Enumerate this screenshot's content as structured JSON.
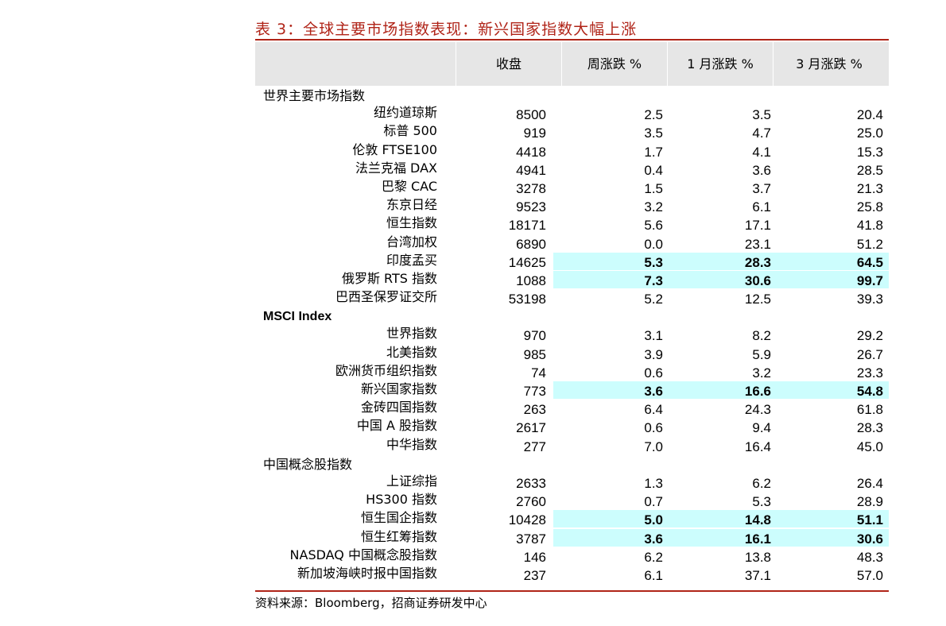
{
  "title": "表 3：全球主要市场指数表现：新兴国家指数大幅上涨",
  "columns": [
    "",
    "收盘",
    "周涨跌 %",
    "1 月涨跌 %",
    "3 月涨跌 %"
  ],
  "sections": [
    {
      "label": "世界主要市场指数",
      "rows": [
        {
          "name": "纽约道琼斯",
          "close": "8500",
          "week": "2.5",
          "m1": "3.5",
          "m3": "20.4",
          "highlight": false
        },
        {
          "name": "标普 500",
          "close": "919",
          "week": "3.5",
          "m1": "4.7",
          "m3": "25.0",
          "highlight": false
        },
        {
          "name": "伦敦 FTSE100",
          "close": "4418",
          "week": "1.7",
          "m1": "4.1",
          "m3": "15.3",
          "highlight": false
        },
        {
          "name": "法兰克福 DAX",
          "close": "4941",
          "week": "0.4",
          "m1": "3.6",
          "m3": "28.5",
          "highlight": false
        },
        {
          "name": "巴黎 CAC",
          "close": "3278",
          "week": "1.5",
          "m1": "3.7",
          "m3": "21.3",
          "highlight": false
        },
        {
          "name": "东京日经",
          "close": "9523",
          "week": "3.2",
          "m1": "6.1",
          "m3": "25.8",
          "highlight": false
        },
        {
          "name": "恒生指数",
          "close": "18171",
          "week": "5.6",
          "m1": "17.1",
          "m3": "41.8",
          "highlight": false
        },
        {
          "name": "台湾加权",
          "close": "6890",
          "week": "0.0",
          "m1": "23.1",
          "m3": "51.2",
          "highlight": false
        },
        {
          "name": "印度孟买",
          "close": "14625",
          "week": "5.3",
          "m1": "28.3",
          "m3": "64.5",
          "highlight": true
        },
        {
          "name": "俄罗斯 RTS 指数",
          "close": "1088",
          "week": "7.3",
          "m1": "30.6",
          "m3": "99.7",
          "highlight": true
        },
        {
          "name": "巴西圣保罗证交所",
          "close": "53198",
          "week": "5.2",
          "m1": "12.5",
          "m3": "39.3",
          "highlight": false
        }
      ]
    },
    {
      "label": "MSCI Index",
      "rows": [
        {
          "name": "世界指数",
          "close": "970",
          "week": "3.1",
          "m1": "8.2",
          "m3": "29.2",
          "highlight": false
        },
        {
          "name": "北美指数",
          "close": "985",
          "week": "3.9",
          "m1": "5.9",
          "m3": "26.7",
          "highlight": false
        },
        {
          "name": "欧洲货币组织指数",
          "close": "74",
          "week": "0.6",
          "m1": "3.2",
          "m3": "23.3",
          "highlight": false
        },
        {
          "name": "新兴国家指数",
          "close": "773",
          "week": "3.6",
          "m1": "16.6",
          "m3": "54.8",
          "highlight": true
        },
        {
          "name": "金砖四国指数",
          "close": "263",
          "week": "6.4",
          "m1": "24.3",
          "m3": "61.8",
          "highlight": false
        },
        {
          "name": "中国 A 股指数",
          "close": "2617",
          "week": "0.6",
          "m1": "9.4",
          "m3": "28.3",
          "highlight": false
        },
        {
          "name": "中华指数",
          "close": "277",
          "week": "7.0",
          "m1": "16.4",
          "m3": "45.0",
          "highlight": false
        }
      ]
    },
    {
      "label": "中国概念股指数",
      "rows": [
        {
          "name": "上证综指",
          "close": "2633",
          "week": "1.3",
          "m1": "6.2",
          "m3": "26.4",
          "highlight": false
        },
        {
          "name": "HS300 指数",
          "close": "2760",
          "week": "0.7",
          "m1": "5.3",
          "m3": "28.9",
          "highlight": false
        },
        {
          "name": "恒生国企指数",
          "close": "10428",
          "week": "5.0",
          "m1": "14.8",
          "m3": "51.1",
          "highlight": true
        },
        {
          "name": "恒生红筹指数",
          "close": "3787",
          "week": "3.6",
          "m1": "16.1",
          "m3": "30.6",
          "highlight": true
        },
        {
          "name": "NASDAQ 中国概念股指数",
          "close": "146",
          "week": "6.2",
          "m1": "13.8",
          "m3": "48.3",
          "highlight": false
        },
        {
          "name": "新加坡海峡时报中国指数",
          "close": "237",
          "week": "6.1",
          "m1": "37.1",
          "m3": "57.0",
          "highlight": false
        }
      ]
    }
  ],
  "source": "资料来源：Bloomberg，招商证券研发中心",
  "colors": {
    "accent": "#b02418",
    "header_bg": "#e6e6e6",
    "highlight_bg": "#ccfdfd"
  }
}
